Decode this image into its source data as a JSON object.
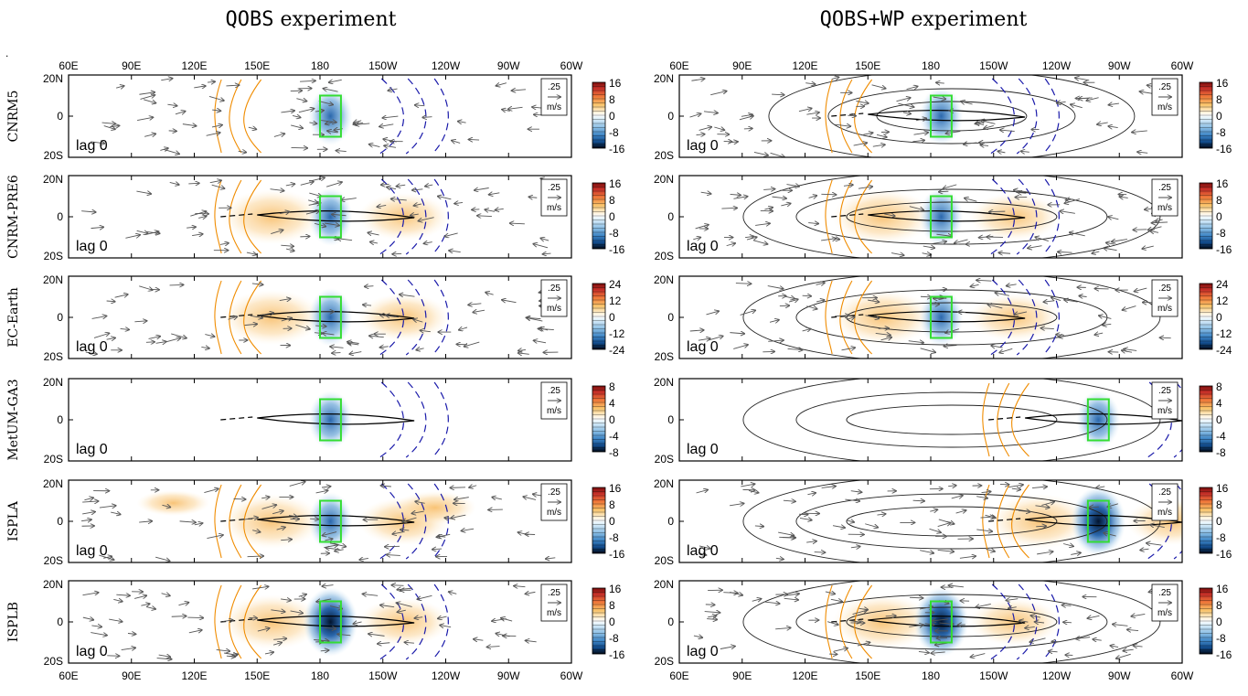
{
  "columns": [
    {
      "title_prefix": "QOBS",
      "title_suffix": " experiment"
    },
    {
      "title_prefix": "QOBS+WP",
      "title_suffix": " experiment"
    }
  ],
  "stray_mark": ".",
  "lon_labels": [
    "60E",
    "90E",
    "120E",
    "150E",
    "180",
    "150W",
    "120W",
    "90W",
    "60W"
  ],
  "lat_labels": [
    "20N",
    "0",
    "20S"
  ],
  "lag_label": "lag 0",
  "ref_vector": {
    "magnitude": ".25",
    "unit": "m/s"
  },
  "rows": [
    {
      "model": "CNRM5",
      "colorbar": [
        "16",
        "8",
        "0",
        "-8",
        "-16"
      ],
      "max": 16,
      "box_left": [
        180,
        190
      ],
      "box_right": [
        180,
        190
      ],
      "right_anom_lon": 185
    },
    {
      "model": "CNRM-PRE6",
      "colorbar": [
        "16",
        "8",
        "0",
        "-8",
        "-16"
      ],
      "max": 16,
      "box_left": [
        180,
        190
      ],
      "box_right": [
        180,
        190
      ],
      "right_anom_lon": 185
    },
    {
      "model": "EC-Earth",
      "colorbar": [
        "24",
        "12",
        "0",
        "-12",
        "-24"
      ],
      "max": 24,
      "box_left": [
        180,
        190
      ],
      "box_right": [
        180,
        190
      ],
      "right_anom_lon": 185
    },
    {
      "model": "MetUM-GA3",
      "colorbar": [
        "8",
        "4",
        "0",
        "-4",
        "-8"
      ],
      "max": 8,
      "box_left": [
        180,
        190
      ],
      "box_right": [
        255,
        265
      ],
      "right_anom_lon": 260
    },
    {
      "model": "ISPLA",
      "colorbar": [
        "16",
        "8",
        "0",
        "-8",
        "-16"
      ],
      "max": 16,
      "box_left": [
        180,
        190
      ],
      "box_right": [
        255,
        265
      ],
      "right_anom_lon": 260
    },
    {
      "model": "ISPLB",
      "colorbar": [
        "16",
        "8",
        "0",
        "-8",
        "-16"
      ],
      "max": 16,
      "box_left": [
        180,
        190
      ],
      "box_right": [
        180,
        190
      ],
      "right_anom_lon": 185
    }
  ],
  "chart_data": {
    "type": "heatmap",
    "description_of_axes": {
      "x": "longitude 60E to 60W (300E)",
      "y": "latitude 20S to 20N"
    },
    "xlim": [
      60,
      300
    ],
    "ylim": [
      -20,
      20
    ],
    "x_ticks": [
      60,
      90,
      120,
      150,
      180,
      210,
      240,
      270,
      300
    ],
    "y_ticks": [
      20,
      0,
      -20
    ],
    "forcing_ellipses": {
      "QOBS": false,
      "QOBS+WP": true
    },
    "colors": {
      "positive": "#f2a23a",
      "negative": "#2b6cb0",
      "strong_negative": "#08306b",
      "box": "#33dd33",
      "neg_contour": "#1a1aaa",
      "pos_contour": "#f08c00",
      "vector": "#555555"
    }
  }
}
